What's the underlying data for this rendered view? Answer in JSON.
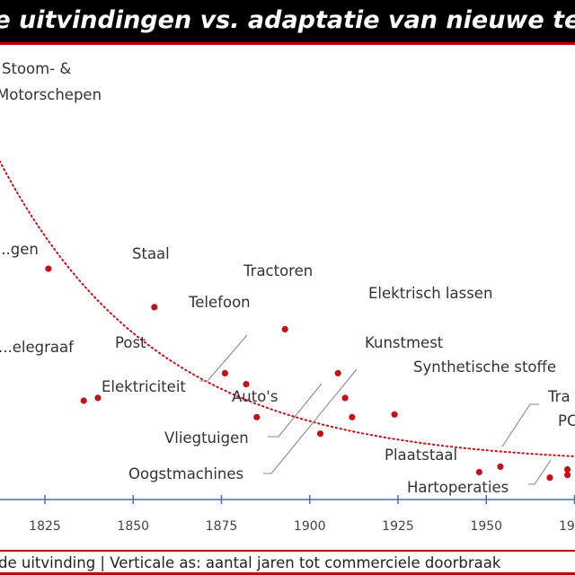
{
  "header": {
    "title": "de uitvindingen vs. adaptatie van nieuwe te"
  },
  "footer": {
    "text": "de uitvinding | Verticale as: aantal jaren tot commerciele doorbraak"
  },
  "chart_data": {
    "type": "scatter",
    "title": "de uitvindingen vs. adaptatie van nieuwe te",
    "xlabel": "de uitvinding",
    "ylabel": "aantal jaren tot commerciele doorbraak",
    "x_ticks": [
      "1825",
      "1850",
      "1875",
      "1900",
      "1925",
      "1950",
      "19"
    ],
    "colors": {
      "point": "#c0141c",
      "trend": "#c0141c",
      "axis": "#4a6fa5",
      "leader": "#888888"
    },
    "trendline": "dotted, decreasing",
    "points": [
      {
        "label": "Stoom- & Motorschepen",
        "x": 1805,
        "y": 134
      },
      {
        "label": "...gen",
        "x": 1826,
        "y": 82
      },
      {
        "label": "Staal",
        "x": 1856,
        "y": 68
      },
      {
        "label": "Tractoren",
        "x": 1893,
        "y": 60
      },
      {
        "label": "Telefoon",
        "x": 1876,
        "y": 44
      },
      {
        "label": "Elektrisch lassen",
        "x": 1908,
        "y": 44
      },
      {
        "label": "...elegraaf",
        "x": 1836,
        "y": 34
      },
      {
        "label": "Post",
        "x": 1840,
        "y": 35
      },
      {
        "label": "Elektriciteit",
        "x": 1882,
        "y": 40
      },
      {
        "label": "Kunstmest",
        "x": 1910,
        "y": 35
      },
      {
        "label": "Auto's",
        "x": 1885,
        "y": 28
      },
      {
        "label": "Synthetische stoffe",
        "x": 1924,
        "y": 29
      },
      {
        "label": "Vliegtuigen",
        "x": 1903,
        "y": 22
      },
      {
        "label": "Oogstmachines",
        "x": 1912,
        "y": 28
      },
      {
        "label": "Tra...",
        "x": 1954,
        "y": 10
      },
      {
        "label": "Plaatstaal",
        "x": 1948,
        "y": 8
      },
      {
        "label": "PC...",
        "x": 1973,
        "y": 9
      },
      {
        "label": "Hartoperaties",
        "x": 1968,
        "y": 6
      },
      {
        "label": "",
        "x": 1973,
        "y": 7
      }
    ],
    "labels": [
      {
        "text": "Stoom- &"
      },
      {
        "text": "Motorschepen"
      },
      {
        "text": "...gen"
      },
      {
        "text": "Staal"
      },
      {
        "text": "Tractoren"
      },
      {
        "text": "Telefoon"
      },
      {
        "text": "Elektrisch lassen"
      },
      {
        "text": "...elegraaf"
      },
      {
        "text": "Post"
      },
      {
        "text": "Kunstmest"
      },
      {
        "text": "Elektriciteit"
      },
      {
        "text": "Synthetische stoffe"
      },
      {
        "text": "Auto's"
      },
      {
        "text": "Vliegtuigen"
      },
      {
        "text": "Oogstmachines"
      },
      {
        "text": "Tra"
      },
      {
        "text": "PC"
      },
      {
        "text": "Plaatstaal"
      },
      {
        "text": "Hartoperaties"
      }
    ]
  }
}
